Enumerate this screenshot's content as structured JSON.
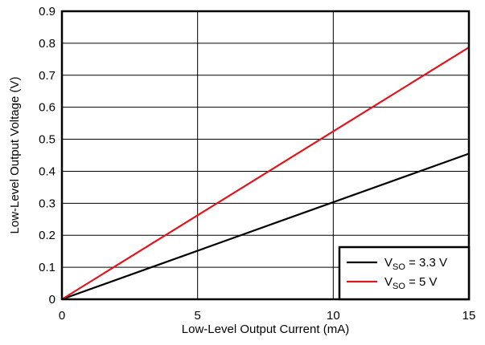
{
  "chart_data": {
    "type": "line",
    "title": "",
    "xlabel": "Low-Level Output Current (mA)",
    "ylabel": "Low-Level Output Voltage (V)",
    "xlim": [
      0,
      15
    ],
    "ylim": [
      0,
      0.9
    ],
    "x_ticks": [
      0,
      5,
      10,
      15
    ],
    "y_ticks": [
      0,
      0.1,
      0.2,
      0.3,
      0.4,
      0.5,
      0.6,
      0.7,
      0.8,
      0.9
    ],
    "x_tick_labels": [
      "0",
      "5",
      "10",
      "15"
    ],
    "y_tick_labels": [
      "0",
      "0.1",
      "0.2",
      "0.3",
      "0.4",
      "0.5",
      "0.6",
      "0.7",
      "0.8",
      "0.9"
    ],
    "grid": true,
    "legend_position": "bottom-right",
    "series": [
      {
        "name_main": "V",
        "name_sub": "SO",
        "name_rest": " = 3.3 V",
        "color": "#000000",
        "x": [
          0,
          15
        ],
        "y": [
          0,
          0.455
        ]
      },
      {
        "name_main": "V",
        "name_sub": "SO",
        "name_rest": " = 5 V",
        "color": "#e0161c",
        "x": [
          0,
          15
        ],
        "y": [
          0,
          0.787
        ]
      }
    ]
  }
}
